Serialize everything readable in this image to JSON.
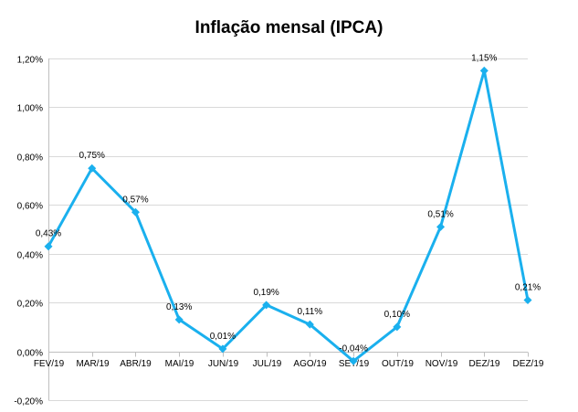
{
  "chart_data": {
    "type": "line",
    "title": "Inflação mensal (IPCA)",
    "xlabel": "",
    "ylabel": "",
    "categories": [
      "FEV/19",
      "MAR/19",
      "ABR/19",
      "MAI/19",
      "JUN/19",
      "JUL/19",
      "AGO/19",
      "SET/19",
      "OUT/19",
      "NOV/19",
      "DEZ/19",
      "DEZ/19"
    ],
    "series": [
      {
        "values": [
          0.43,
          0.75,
          0.57,
          0.13,
          0.01,
          0.19,
          0.11,
          -0.04,
          0.1,
          0.51,
          1.15,
          0.21
        ],
        "labels": [
          "0,43%",
          "0,75%",
          "0,57%",
          "0,13%",
          "0,01%",
          "0,19%",
          "0,11%",
          "-0,04%",
          "0,10%",
          "0,51%",
          "1,15%",
          "0,21%"
        ],
        "color": "#1ab0ee"
      }
    ],
    "ylim": [
      -0.2,
      1.2
    ],
    "yticks": [
      -0.2,
      0.0,
      0.2,
      0.4,
      0.6,
      0.8,
      1.0,
      1.2
    ],
    "ytick_labels": [
      "-0,20%",
      "0,00%",
      "0,20%",
      "0,40%",
      "0,60%",
      "0,80%",
      "1,00%",
      "1,20%"
    ],
    "grid": true,
    "gridline_color": "#d9d9d9",
    "legend": false
  }
}
